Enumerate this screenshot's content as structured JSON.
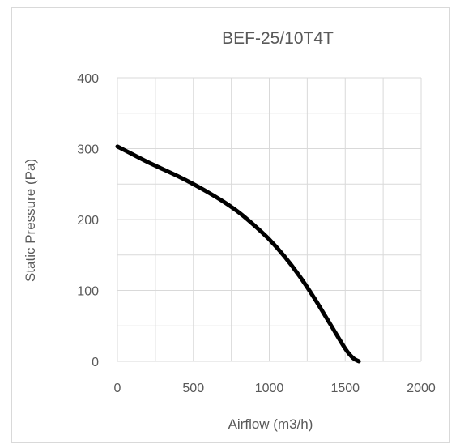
{
  "chart_data": {
    "type": "line",
    "title": "BEF-25/10T4T",
    "xlabel": "Airflow (m3/h)",
    "ylabel": "Static Pressure (Pa)",
    "xlim": [
      0,
      2000
    ],
    "ylim": [
      0,
      400
    ],
    "x_ticks": [
      "0",
      "500",
      "1000",
      "1500",
      "2000"
    ],
    "y_ticks": [
      "0",
      "100",
      "200",
      "300",
      "400"
    ],
    "grid": true,
    "legend": "none",
    "series": [
      {
        "color": "#000000",
        "x": [
          0,
          100,
          200,
          300,
          400,
          500,
          600,
          700,
          800,
          900,
          1000,
          1100,
          1200,
          1300,
          1400,
          1500,
          1550,
          1590
        ],
        "y": [
          303,
          292,
          281,
          271,
          261,
          250,
          238,
          225,
          210,
          192,
          172,
          148,
          120,
          88,
          53,
          18,
          5,
          0
        ]
      }
    ]
  }
}
